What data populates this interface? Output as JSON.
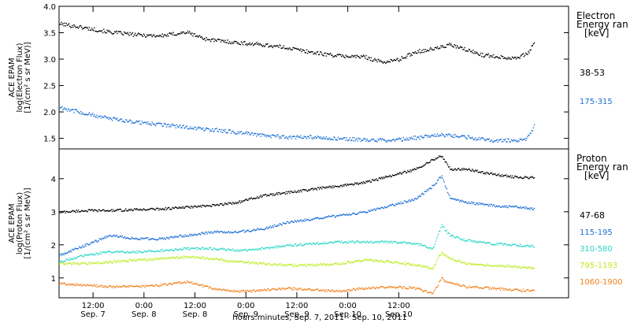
{
  "chart_data": [
    {
      "type": "scatter",
      "ylabel_lines": [
        "ACE EPAM",
        "log(Electron Flux)",
        "[1/(cm² s sr MeV)]"
      ],
      "ylim": [
        1.3,
        4.0
      ],
      "yticks": [
        "1.5",
        "2.0",
        "2.5",
        "3.0",
        "3.5",
        "4.0"
      ],
      "ytick_values": [
        1.5,
        2.0,
        2.5,
        3.0,
        3.5,
        4.0
      ],
      "legend_title": [
        "Electron",
        "Energy ran",
        "[keV]"
      ],
      "series": [
        {
          "name": "38-53",
          "color": "#000000",
          "x": [
            0,
            6,
            12,
            18,
            24,
            30,
            34,
            36,
            42,
            48,
            54,
            60,
            66,
            72,
            76,
            80,
            84,
            88,
            92,
            96,
            100,
            102,
            106,
            108,
            110,
            111,
            112
          ],
          "y": [
            3.68,
            3.6,
            3.52,
            3.47,
            3.45,
            3.52,
            3.4,
            3.37,
            3.32,
            3.28,
            3.22,
            3.13,
            3.07,
            3.05,
            2.95,
            3.0,
            3.15,
            3.2,
            3.28,
            3.18,
            3.08,
            3.07,
            3.03,
            3.05,
            3.1,
            3.2,
            3.35
          ]
        },
        {
          "name": "175-315",
          "color": "#1a6fd6",
          "x": [
            0,
            6,
            12,
            18,
            24,
            30,
            36,
            42,
            48,
            54,
            60,
            66,
            72,
            78,
            84,
            90,
            96,
            102,
            108,
            110,
            111,
            112
          ],
          "y": [
            2.1,
            1.98,
            1.88,
            1.82,
            1.77,
            1.72,
            1.67,
            1.62,
            1.57,
            1.53,
            1.53,
            1.5,
            1.48,
            1.47,
            1.52,
            1.57,
            1.53,
            1.47,
            1.47,
            1.5,
            1.6,
            1.78
          ]
        }
      ]
    },
    {
      "type": "scatter",
      "ylabel_lines": [
        "ACE EPAM",
        "log(Proton Flux)",
        "[1/(cm² s sr MeV)]"
      ],
      "ylim": [
        0.4,
        4.9
      ],
      "yticks": [
        "1",
        "2",
        "3",
        "4"
      ],
      "ytick_values": [
        1,
        2,
        3,
        4
      ],
      "legend_title": [
        "Proton",
        "Energy ran",
        "[keV]"
      ],
      "series": [
        {
          "name": "47-68",
          "color": "#000000",
          "x": [
            0,
            6,
            12,
            18,
            24,
            30,
            36,
            42,
            48,
            54,
            60,
            66,
            72,
            78,
            84,
            88,
            90,
            92,
            96,
            102,
            108,
            112
          ],
          "y": [
            3.0,
            3.05,
            3.05,
            3.08,
            3.1,
            3.15,
            3.2,
            3.3,
            3.5,
            3.6,
            3.7,
            3.8,
            3.9,
            4.1,
            4.3,
            4.6,
            4.7,
            4.3,
            4.3,
            4.15,
            4.05,
            4.05
          ]
        },
        {
          "name": "115-195",
          "color": "#1a6fd6",
          "x": [
            0,
            6,
            12,
            18,
            24,
            30,
            36,
            42,
            48,
            54,
            60,
            66,
            72,
            78,
            84,
            88,
            90,
            92,
            96,
            102,
            108,
            112
          ],
          "y": [
            1.7,
            2.0,
            2.3,
            2.2,
            2.2,
            2.3,
            2.4,
            2.4,
            2.5,
            2.7,
            2.8,
            2.9,
            3.0,
            3.2,
            3.4,
            3.8,
            4.1,
            3.4,
            3.3,
            3.2,
            3.15,
            3.1
          ]
        },
        {
          "name": "310-580",
          "color": "#28d7c8",
          "x": [
            0,
            6,
            12,
            18,
            24,
            30,
            36,
            42,
            48,
            54,
            60,
            66,
            72,
            78,
            84,
            88,
            90,
            92,
            96,
            102,
            108,
            112
          ],
          "y": [
            1.5,
            1.7,
            1.8,
            1.8,
            1.85,
            1.9,
            1.9,
            1.85,
            1.9,
            2.0,
            2.05,
            2.1,
            2.1,
            2.1,
            2.05,
            1.9,
            2.6,
            2.3,
            2.15,
            2.05,
            2.0,
            1.98
          ]
        },
        {
          "name": "795-1193",
          "color": "#bdeb1e",
          "x": [
            0,
            6,
            12,
            18,
            24,
            30,
            36,
            42,
            48,
            54,
            60,
            66,
            72,
            78,
            84,
            88,
            90,
            92,
            96,
            102,
            108,
            112
          ],
          "y": [
            1.45,
            1.45,
            1.5,
            1.55,
            1.6,
            1.65,
            1.6,
            1.5,
            1.45,
            1.4,
            1.4,
            1.45,
            1.55,
            1.5,
            1.4,
            1.3,
            1.8,
            1.6,
            1.45,
            1.4,
            1.35,
            1.3
          ]
        },
        {
          "name": "1060-1900",
          "color": "#f0821e",
          "x": [
            0,
            6,
            12,
            18,
            24,
            30,
            36,
            42,
            48,
            54,
            60,
            66,
            72,
            78,
            84,
            88,
            90,
            92,
            96,
            102,
            108,
            112
          ],
          "y": [
            0.85,
            0.8,
            0.75,
            0.75,
            0.8,
            0.9,
            0.7,
            0.6,
            0.65,
            0.7,
            0.65,
            0.62,
            0.7,
            0.75,
            0.7,
            0.55,
            1.0,
            0.85,
            0.75,
            0.7,
            0.65,
            0.62
          ]
        }
      ]
    }
  ],
  "x_axis": {
    "xlim": [
      0,
      120
    ],
    "ticks": [
      {
        "value": 8,
        "line1": "12:00",
        "line2": "Sep. 7"
      },
      {
        "value": 20,
        "line1": "0:00",
        "line2": "Sep. 8"
      },
      {
        "value": 32,
        "line1": "12:00",
        "line2": "Sep. 8"
      },
      {
        "value": 44,
        "line1": "0:00",
        "line2": "Sep. 9"
      },
      {
        "value": 56,
        "line1": "12:00",
        "line2": "Sep. 9"
      },
      {
        "value": 68,
        "line1": "0:00",
        "line2": "Sep.10"
      },
      {
        "value": 80,
        "line1": "12:00",
        "line2": "Sep.10"
      }
    ],
    "label": "hours:minutes, Sep.  7, 2011 - Sep. 10, 2011"
  }
}
